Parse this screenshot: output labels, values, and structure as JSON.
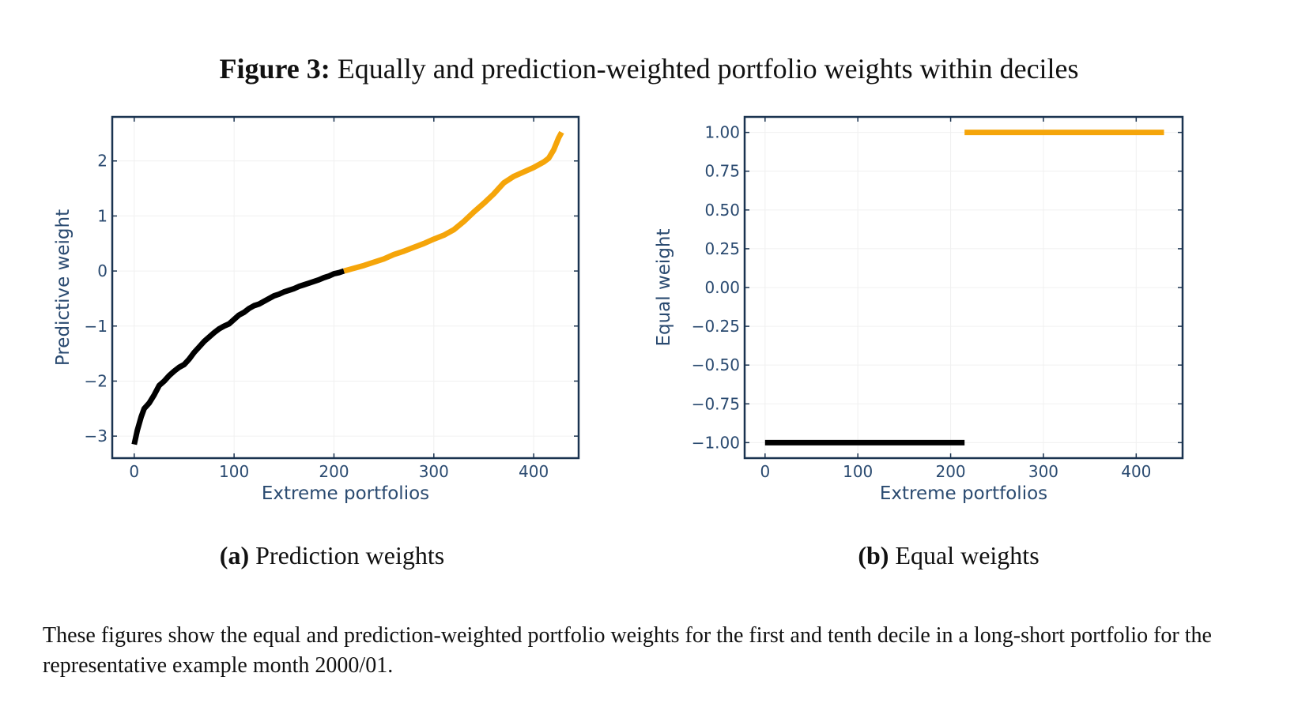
{
  "figure": {
    "label": "Figure 3:",
    "title": "Equally and prediction-weighted portfolio weights within deciles"
  },
  "subfigures": [
    {
      "label": "(a)",
      "title": "Prediction weights"
    },
    {
      "label": "(b)",
      "title": "Equal weights"
    }
  ],
  "caption": "These figures show the equal and prediction-weighted portfolio weights for the first and tenth decile in a long-short portfolio for the representative example month 2000/01.",
  "colors": {
    "short_leg": "#000000",
    "long_leg": "#f5a50a",
    "axis": "#1a3350",
    "label": "#2a4a70",
    "grid": "#f0f0f0"
  },
  "chart_data": [
    {
      "type": "line",
      "xlabel": "Extreme portfolios",
      "ylabel": "Predictive weight",
      "xlim": [
        -22,
        445
      ],
      "ylim": [
        -3.4,
        2.8
      ],
      "xticks": [
        0,
        100,
        200,
        300,
        400
      ],
      "yticks": [
        -3,
        -2,
        -1,
        0,
        1,
        2
      ],
      "grid": true,
      "series": [
        {
          "color": "#000000",
          "x": [
            0,
            3,
            7,
            10,
            15,
            20,
            25,
            30,
            35,
            40,
            45,
            50,
            55,
            60,
            65,
            70,
            75,
            80,
            85,
            90,
            95,
            100,
            105,
            110,
            115,
            120,
            125,
            130,
            135,
            140,
            145,
            150,
            155,
            160,
            165,
            170,
            175,
            180,
            185,
            190,
            195,
            200,
            205,
            210
          ],
          "y": [
            -3.15,
            -2.9,
            -2.65,
            -2.5,
            -2.4,
            -2.25,
            -2.08,
            -2.0,
            -1.9,
            -1.82,
            -1.75,
            -1.7,
            -1.6,
            -1.48,
            -1.38,
            -1.28,
            -1.2,
            -1.12,
            -1.05,
            -1.0,
            -0.96,
            -0.88,
            -0.8,
            -0.75,
            -0.68,
            -0.63,
            -0.6,
            -0.55,
            -0.5,
            -0.45,
            -0.42,
            -0.38,
            -0.35,
            -0.32,
            -0.28,
            -0.25,
            -0.22,
            -0.19,
            -0.16,
            -0.12,
            -0.09,
            -0.05,
            -0.03,
            0.0
          ]
        },
        {
          "color": "#f5a50a",
          "x": [
            210,
            220,
            230,
            240,
            250,
            260,
            270,
            280,
            290,
            300,
            310,
            320,
            330,
            340,
            350,
            360,
            370,
            380,
            390,
            400,
            410,
            415,
            420,
            425,
            428
          ],
          "y": [
            0.0,
            0.05,
            0.1,
            0.16,
            0.22,
            0.3,
            0.36,
            0.43,
            0.5,
            0.58,
            0.65,
            0.75,
            0.9,
            1.07,
            1.23,
            1.4,
            1.6,
            1.72,
            1.8,
            1.88,
            1.98,
            2.05,
            2.2,
            2.42,
            2.52
          ]
        }
      ]
    },
    {
      "type": "line",
      "xlabel": "Extreme portfolios",
      "ylabel": "Equal weight",
      "xlim": [
        -22,
        450
      ],
      "ylim": [
        -1.1,
        1.1
      ],
      "xticks": [
        0,
        100,
        200,
        300,
        400
      ],
      "yticks": [
        -1.0,
        -0.75,
        -0.5,
        -0.25,
        0.0,
        0.25,
        0.5,
        0.75,
        1.0
      ],
      "grid": true,
      "series": [
        {
          "color": "#000000",
          "x": [
            0,
            215
          ],
          "y": [
            -1.0,
            -1.0
          ]
        },
        {
          "color": "#f5a50a",
          "x": [
            215,
            430
          ],
          "y": [
            1.0,
            1.0
          ]
        }
      ]
    }
  ]
}
